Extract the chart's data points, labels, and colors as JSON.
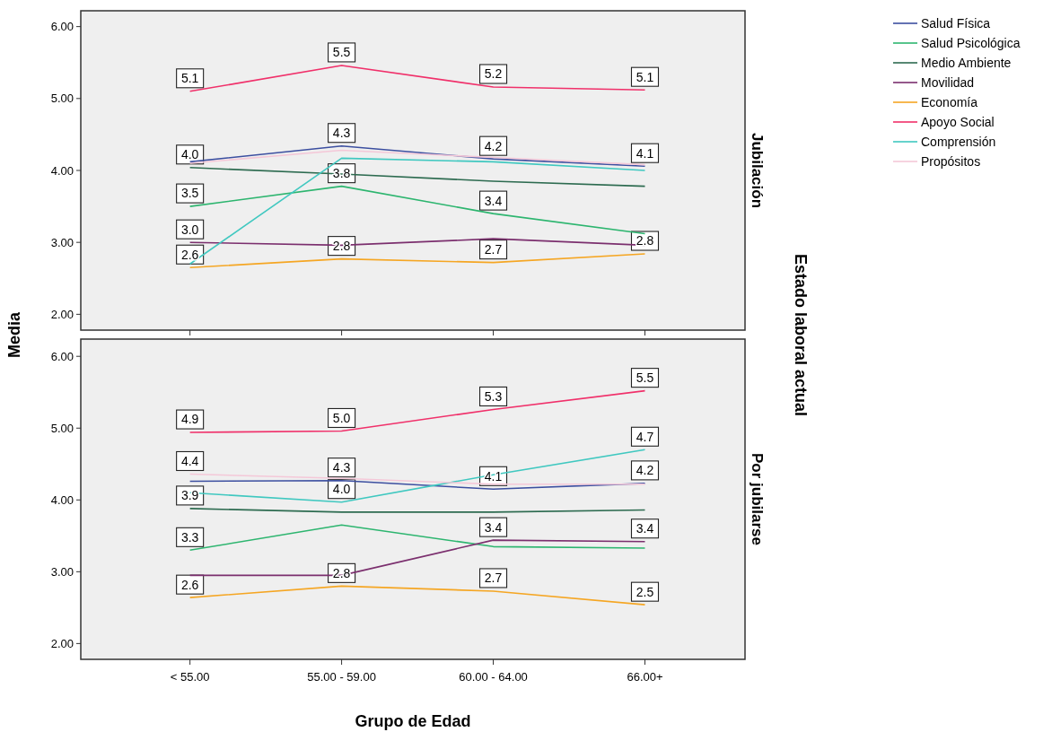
{
  "chart_data": [
    {
      "type": "line",
      "title": "Jubilación",
      "ylabel": "Media",
      "annotations": [
        "Estado laboral actual"
      ],
      "categories": [
        "< 55.00",
        "55.00 - 59.00",
        "60.00 - 64.00",
        "66.00+"
      ],
      "ylim": [
        1.78,
        6.22
      ],
      "yticks": [
        {
          "value": 2,
          "label": "2.00"
        },
        {
          "value": 3,
          "label": "3.00"
        },
        {
          "value": 4,
          "label": "4.00"
        },
        {
          "value": 5,
          "label": "5.00"
        },
        {
          "value": 6,
          "label": "6.00"
        }
      ],
      "tick_labels": "y",
      "legend": "top right",
      "marker": "none",
      "line_style": "solid",
      "grid": false,
      "series": [
        {
          "name": "Salud Física",
          "color": "#3c4fa0",
          "values": [
            4.12,
            4.34,
            4.16,
            4.06
          ],
          "value_labels": [
            null,
            "4.3",
            "4.2",
            "4.1"
          ]
        },
        {
          "name": "Salud Psicológica",
          "color": "#2db56f",
          "values": [
            3.5,
            3.78,
            3.4,
            3.12
          ],
          "value_labels": [
            "3.5",
            "3.8",
            "3.4",
            null
          ]
        },
        {
          "name": "Medio Ambiente",
          "color": "#2d6b50",
          "values": [
            4.04,
            3.95,
            3.85,
            3.78
          ],
          "value_labels": [
            "4.0",
            null,
            null,
            null
          ]
        },
        {
          "name": "Movilidad",
          "color": "#7b2f6e",
          "values": [
            3.0,
            2.96,
            3.05,
            2.96
          ],
          "value_labels": [
            "3.0",
            null,
            null,
            null
          ]
        },
        {
          "name": "Economía",
          "color": "#f5a623",
          "values": [
            2.65,
            2.77,
            2.72,
            2.84
          ],
          "value_labels": [
            "2.6",
            "2.8",
            "2.7",
            "2.8"
          ]
        },
        {
          "name": "Apoyo Social",
          "color": "#f0306a",
          "values": [
            5.1,
            5.46,
            5.16,
            5.12
          ],
          "value_labels": [
            "5.1",
            "5.5",
            "5.2",
            "5.1"
          ]
        },
        {
          "name": "Comprensión",
          "color": "#40c8c0",
          "values": [
            2.7,
            4.17,
            4.12,
            4.0
          ]
        },
        {
          "name": "Propósitos",
          "color": "#f4c8d8",
          "values": [
            4.1,
            4.28,
            4.18,
            4.08
          ]
        }
      ]
    },
    {
      "type": "line",
      "title": "Por jubilarse",
      "xlabel": "Grupo de Edad",
      "categories": [
        "< 55.00",
        "55.00 - 59.00",
        "60.00 - 64.00",
        "66.00+"
      ],
      "ylim": [
        1.78,
        6.24
      ],
      "yticks": [
        {
          "value": 2,
          "label": "2.00"
        },
        {
          "value": 3,
          "label": "3.00"
        },
        {
          "value": 4,
          "label": "4.00"
        },
        {
          "value": 5,
          "label": "5.00"
        },
        {
          "value": 6,
          "label": "6.00"
        }
      ],
      "marker": "none",
      "line_style": "solid",
      "grid": false,
      "series": [
        {
          "name": "Salud Física",
          "color": "#3c4fa0",
          "values": [
            4.26,
            4.27,
            4.15,
            4.23
          ],
          "value_labels": [
            null,
            "4.3",
            "4.1",
            "4.2"
          ]
        },
        {
          "name": "Salud Psicológica",
          "color": "#2db56f",
          "values": [
            3.3,
            3.65,
            3.35,
            3.33
          ],
          "value_labels": [
            "3.3",
            null,
            null,
            null
          ]
        },
        {
          "name": "Medio Ambiente",
          "color": "#2d6b50",
          "values": [
            3.88,
            3.83,
            3.83,
            3.86
          ],
          "value_labels": [
            "3.9",
            null,
            null,
            null
          ]
        },
        {
          "name": "Movilidad",
          "color": "#7b2f6e",
          "values": [
            2.95,
            2.95,
            3.44,
            3.42
          ],
          "value_labels": [
            null,
            null,
            "3.4",
            "3.4"
          ]
        },
        {
          "name": "Economía",
          "color": "#f5a623",
          "values": [
            2.64,
            2.8,
            2.73,
            2.54
          ],
          "value_labels": [
            "2.6",
            "2.8",
            "2.7",
            "2.5"
          ]
        },
        {
          "name": "Apoyo Social",
          "color": "#f0306a",
          "values": [
            4.94,
            4.96,
            5.26,
            5.52
          ],
          "value_labels": [
            "4.9",
            "5.0",
            "5.3",
            "5.5"
          ]
        },
        {
          "name": "Comprensión",
          "color": "#40c8c0",
          "values": [
            4.1,
            3.97,
            4.35,
            4.7
          ],
          "value_labels": [
            null,
            "4.0",
            null,
            "4.7"
          ]
        },
        {
          "name": "Propósitos",
          "color": "#f4c8d8",
          "values": [
            4.36,
            4.3,
            4.22,
            4.22
          ],
          "value_labels": [
            "4.4",
            null,
            null,
            null
          ]
        }
      ]
    }
  ]
}
